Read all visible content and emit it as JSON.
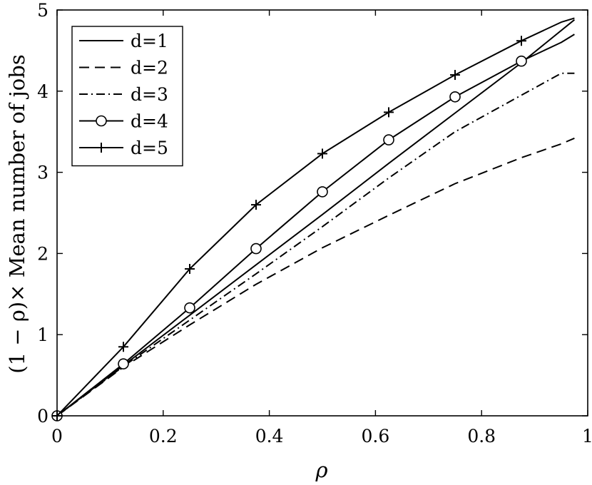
{
  "chart_data": {
    "type": "line",
    "title": "",
    "xlabel": "ρ",
    "ylabel": "(1 − ρ)× Mean number of jobs",
    "xlim": [
      0,
      1
    ],
    "ylim": [
      0,
      5
    ],
    "xticks": [
      0,
      0.2,
      0.4,
      0.6,
      0.8,
      1
    ],
    "xtick_labels": [
      "0",
      "0.2",
      "0.4",
      "0.6",
      "0.8",
      "1"
    ],
    "yticks": [
      0,
      1,
      2,
      3,
      4,
      5
    ],
    "ytick_labels": [
      "0",
      "1",
      "2",
      "3",
      "4",
      "5"
    ],
    "grid": false,
    "legend_position": "top-left",
    "line_color": "#000000",
    "series": [
      {
        "name": "d=1",
        "style": "solid",
        "marker": "none",
        "x": [
          0,
          0.125,
          0.25,
          0.375,
          0.5,
          0.625,
          0.75,
          0.875,
          0.975
        ],
        "y": [
          0,
          0.62,
          1.24,
          1.86,
          2.48,
          3.11,
          3.73,
          4.35,
          4.88
        ]
      },
      {
        "name": "d=2",
        "style": "dashed",
        "marker": "none",
        "x": [
          0,
          0.125,
          0.25,
          0.375,
          0.5,
          0.625,
          0.75,
          0.875,
          0.95,
          0.975
        ],
        "y": [
          0,
          0.6,
          1.12,
          1.62,
          2.07,
          2.47,
          2.86,
          3.18,
          3.35,
          3.42
        ]
      },
      {
        "name": "d=3",
        "style": "dashdot",
        "marker": "none",
        "x": [
          0,
          0.125,
          0.25,
          0.375,
          0.5,
          0.625,
          0.75,
          0.875,
          0.95,
          0.975
        ],
        "y": [
          0,
          0.61,
          1.18,
          1.75,
          2.33,
          2.93,
          3.5,
          3.95,
          4.22,
          4.22
        ]
      },
      {
        "name": "d=4",
        "style": "solid",
        "marker": "circle",
        "x": [
          0,
          0.125,
          0.25,
          0.375,
          0.5,
          0.625,
          0.75,
          0.875,
          0.95,
          0.975
        ],
        "y": [
          0,
          0.64,
          1.33,
          2.06,
          2.76,
          3.4,
          3.93,
          4.37,
          4.6,
          4.7
        ]
      },
      {
        "name": "d=5",
        "style": "solid",
        "marker": "plus",
        "x": [
          0,
          0.125,
          0.25,
          0.375,
          0.5,
          0.625,
          0.75,
          0.875,
          0.95,
          0.975
        ],
        "y": [
          0,
          0.85,
          1.81,
          2.6,
          3.23,
          3.74,
          4.2,
          4.62,
          4.85,
          4.9
        ]
      }
    ]
  }
}
